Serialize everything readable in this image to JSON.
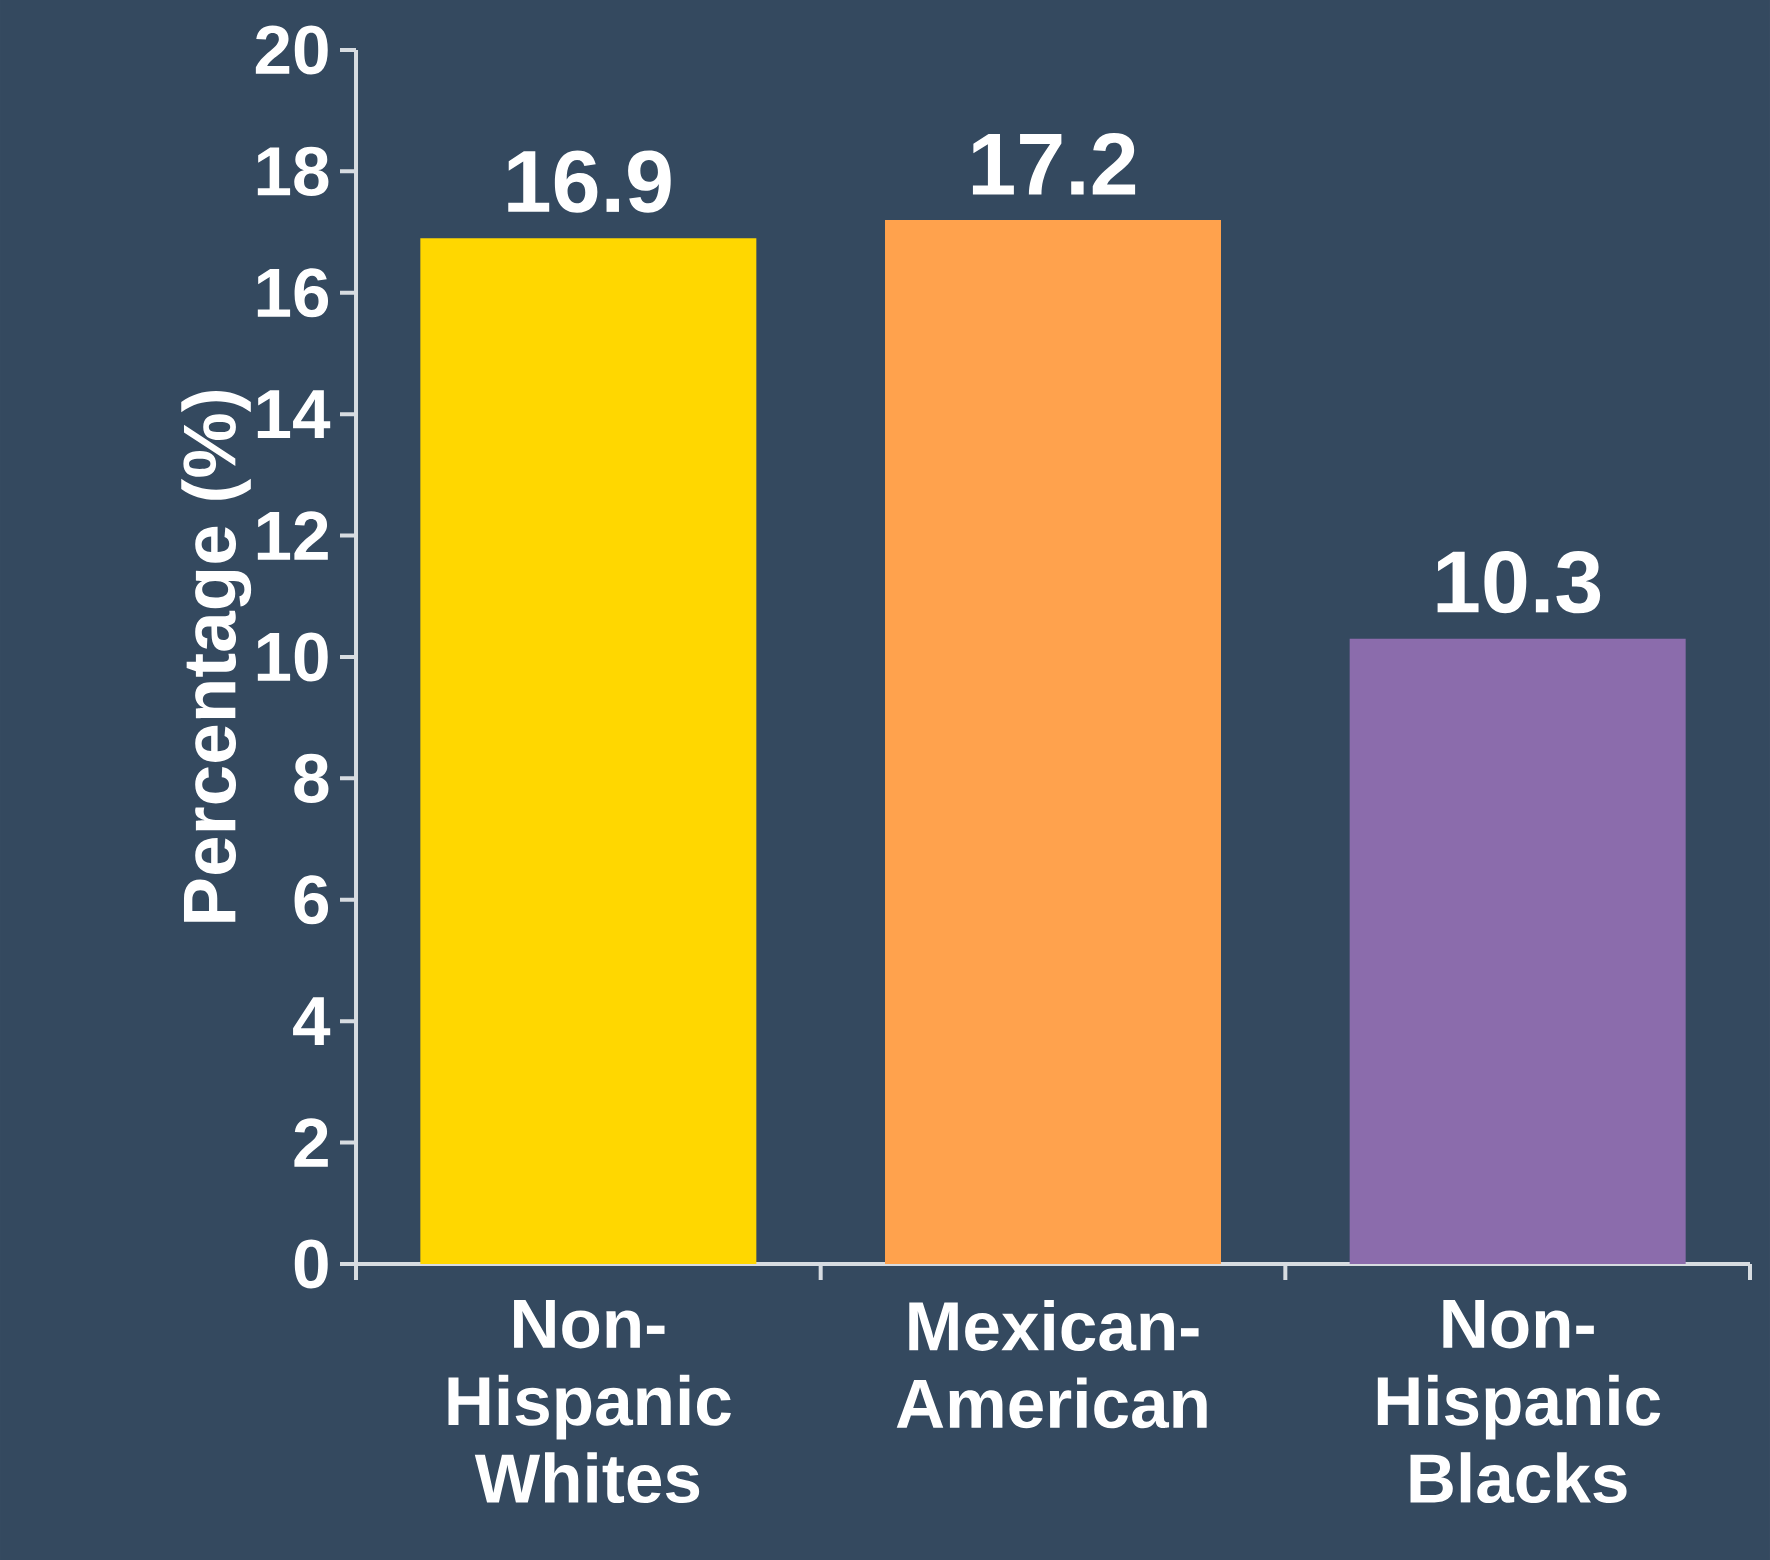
{
  "chart_data": {
    "type": "bar",
    "ylabel": "Percentage (%)",
    "categories": [
      "Non-Hispanic Whites",
      "Mexican-American",
      "Non-Hispanic Blacks"
    ],
    "values": [
      16.9,
      17.2,
      10.3
    ],
    "colors": [
      "#ffd700",
      "#ffa24d",
      "#8b6cac"
    ],
    "ylim": [
      0,
      20
    ],
    "yticks": [
      0,
      2,
      4,
      6,
      8,
      10,
      12,
      14,
      16,
      18,
      20
    ],
    "data_labels": true,
    "grid": false
  }
}
